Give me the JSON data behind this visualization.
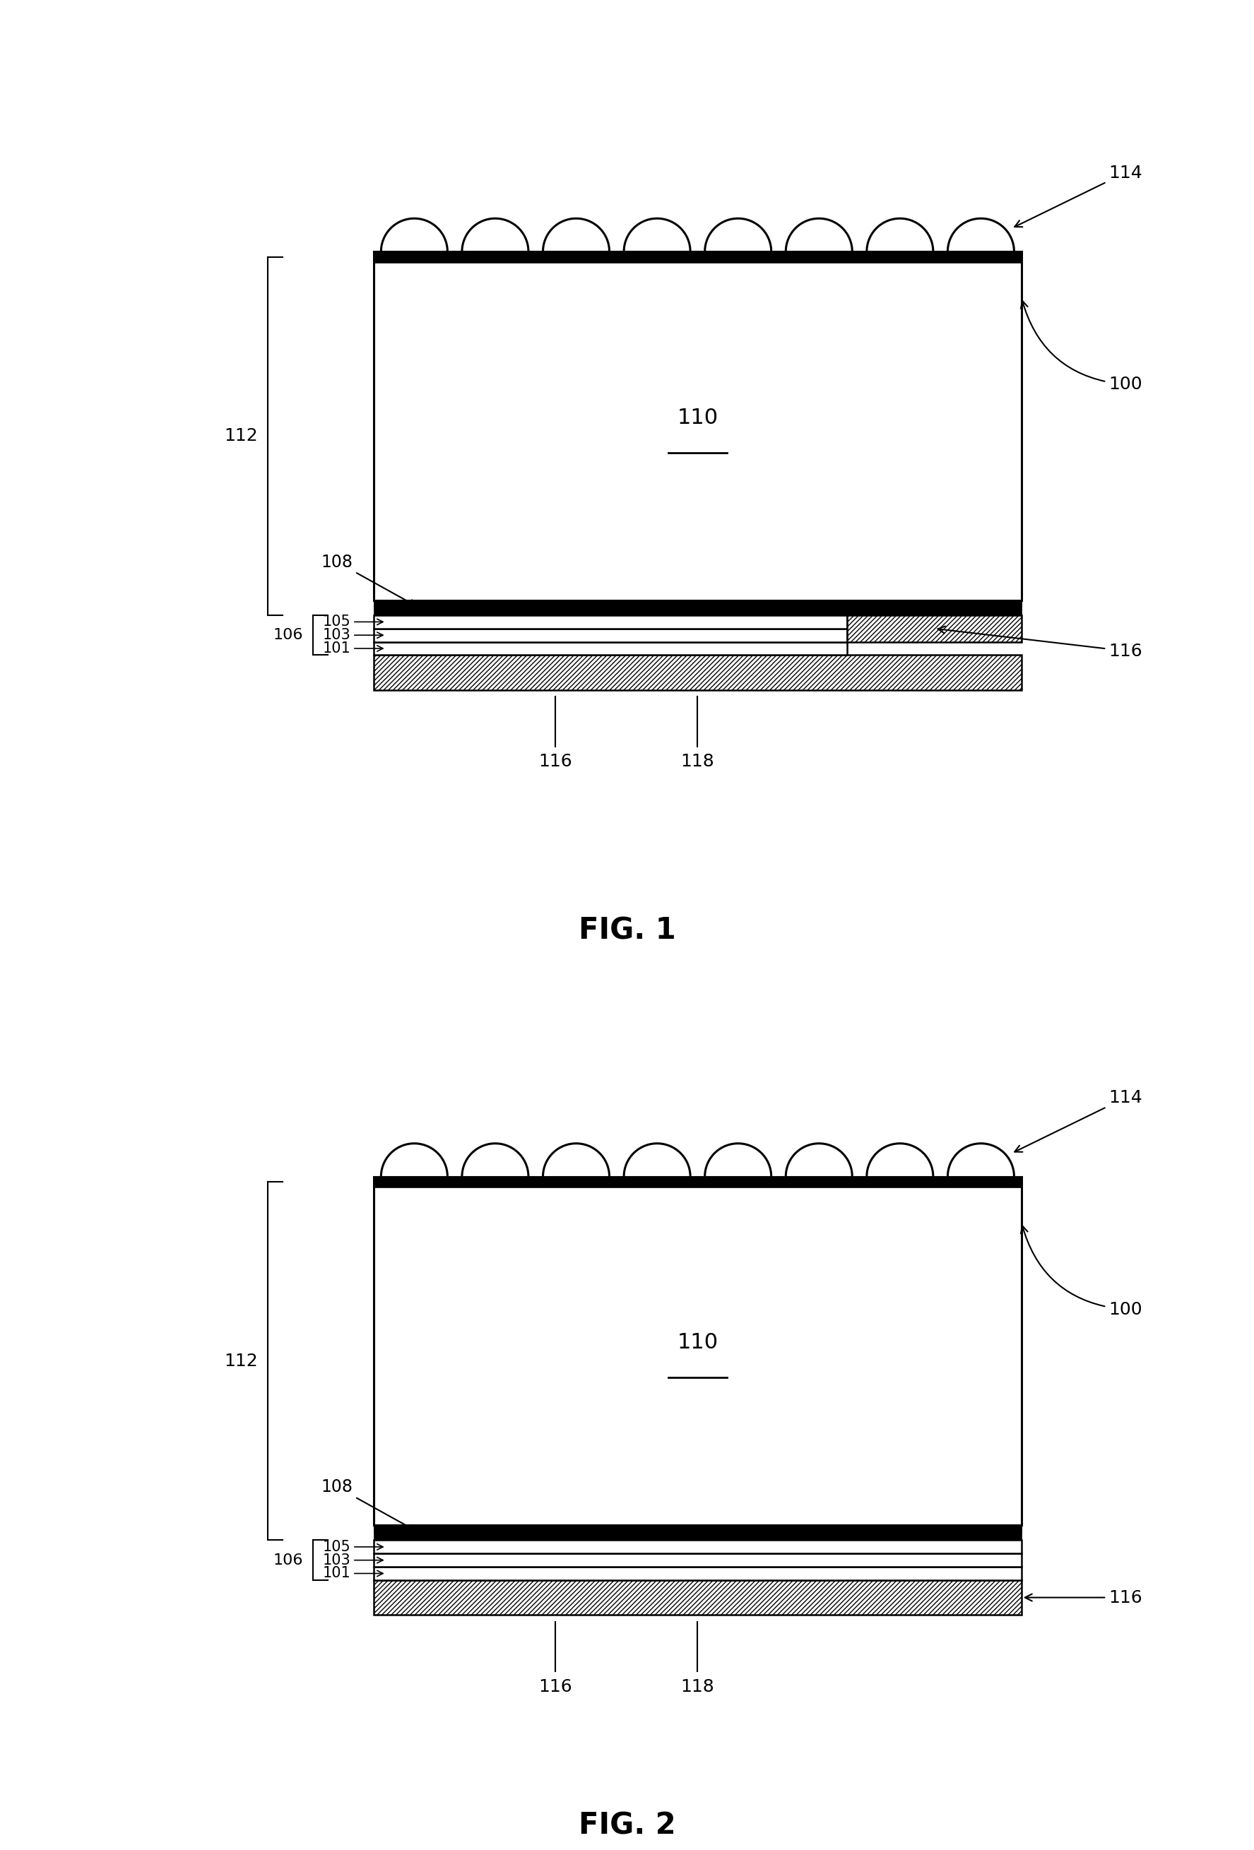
{
  "fig_width": 17.75,
  "fig_height": 26.19,
  "bg_color": "#ffffff",
  "labels": {
    "100": "100",
    "101": "101",
    "103": "103",
    "105": "105",
    "106": "106",
    "108": "108",
    "110": "110",
    "112": "112",
    "114": "114",
    "116": "116",
    "118": "118"
  },
  "num_lenses": 8,
  "fig1_title": "FIG. 1",
  "fig2_title": "FIG. 2",
  "font_size_label": 18,
  "font_size_title": 30
}
